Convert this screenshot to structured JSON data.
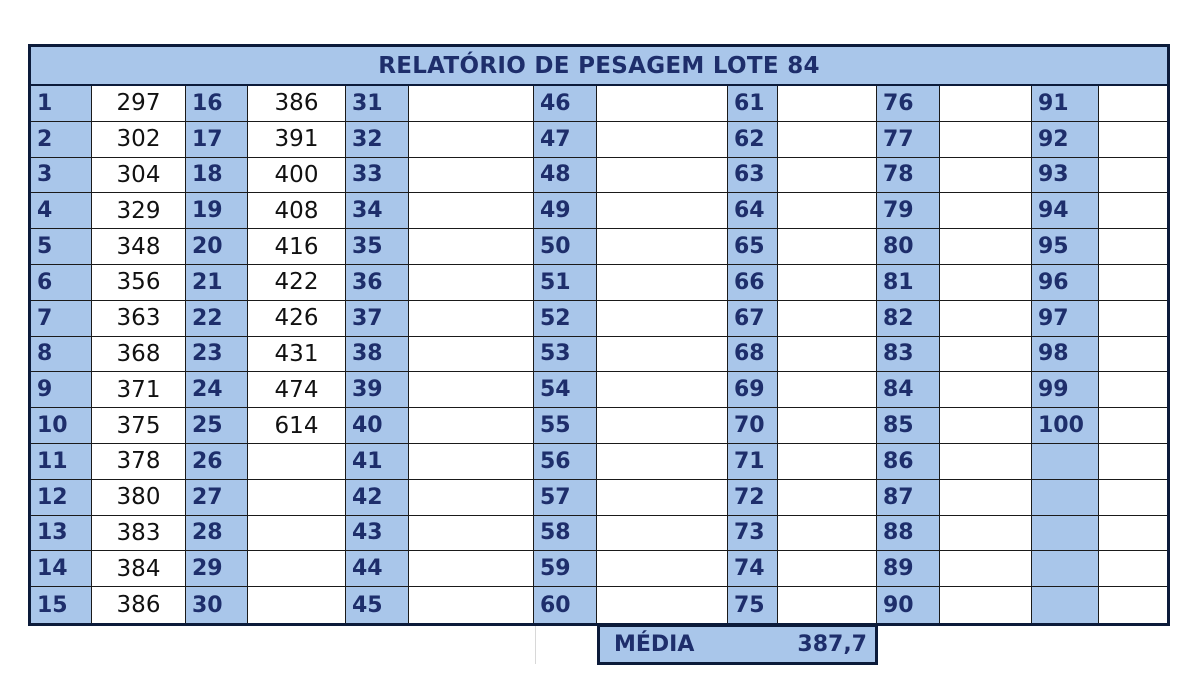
{
  "title": "RELATÓRIO DE PESAGEM LOTE 84",
  "columns": [
    {
      "start": 1,
      "values": [
        "297",
        "302",
        "304",
        "329",
        "348",
        "356",
        "363",
        "368",
        "371",
        "375",
        "378",
        "380",
        "383",
        "384",
        "386"
      ]
    },
    {
      "start": 16,
      "values": [
        "386",
        "391",
        "400",
        "408",
        "416",
        "422",
        "426",
        "431",
        "474",
        "614",
        "",
        "",
        "",
        "",
        ""
      ]
    },
    {
      "start": 31,
      "values": [
        "",
        "",
        "",
        "",
        "",
        "",
        "",
        "",
        "",
        "",
        "",
        "",
        "",
        "",
        ""
      ]
    },
    {
      "start": 46,
      "values": [
        "",
        "",
        "",
        "",
        "",
        "",
        "",
        "",
        "",
        "",
        "",
        "",
        "",
        "",
        ""
      ]
    },
    {
      "start": 61,
      "values": [
        "",
        "",
        "",
        "",
        "",
        "",
        "",
        "",
        "",
        "",
        "",
        "",
        "",
        "",
        ""
      ]
    },
    {
      "start": 76,
      "values": [
        "",
        "",
        "",
        "",
        "",
        "",
        "",
        "",
        "",
        "",
        "",
        "",
        "",
        "",
        ""
      ]
    },
    {
      "start": 91,
      "values": [
        "",
        "",
        "",
        "",
        "",
        "",
        "",
        "",
        "",
        "",
        "",
        "",
        "",
        "",
        ""
      ],
      "count": 10
    }
  ],
  "summary": {
    "label": "MÉDIA",
    "value": "387,7"
  },
  "colors": {
    "header_fill": "#a9c6ea",
    "header_text": "#1e2e6b",
    "border": "#0c1b3a"
  }
}
